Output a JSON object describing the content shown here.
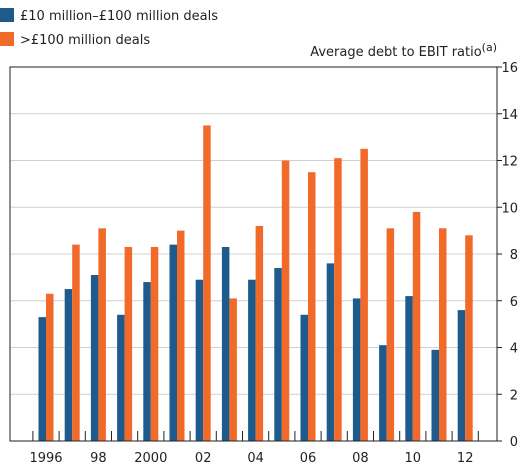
{
  "chart_data": {
    "type": "bar",
    "y_label": "Average debt to EBIT ratio",
    "y_label_note": "(a)",
    "categories": [
      "1996",
      null,
      "98",
      null,
      "2000",
      null,
      "02",
      null,
      "04",
      null,
      "06",
      null,
      "08",
      null,
      "10",
      null,
      "12"
    ],
    "series": [
      {
        "name": "£10 million–£100 million deals",
        "color": "#1f5a8c",
        "values": [
          5.3,
          6.5,
          7.1,
          5.4,
          6.8,
          8.4,
          6.9,
          8.3,
          6.9,
          7.4,
          5.4,
          7.6,
          6.1,
          4.1,
          6.2,
          3.9,
          5.6
        ]
      },
      {
        "name": ">£100 million deals",
        "color": "#f26a2a",
        "values": [
          6.3,
          8.4,
          9.1,
          8.3,
          8.3,
          9.0,
          13.5,
          6.1,
          9.2,
          12.0,
          11.5,
          12.1,
          12.5,
          9.1,
          9.8,
          9.1,
          8.8
        ]
      }
    ],
    "ylim": [
      0,
      16
    ],
    "yticks": [
      0,
      2,
      4,
      6,
      8,
      10,
      12,
      14,
      16
    ],
    "grid": true,
    "y_axis_side": "right"
  }
}
